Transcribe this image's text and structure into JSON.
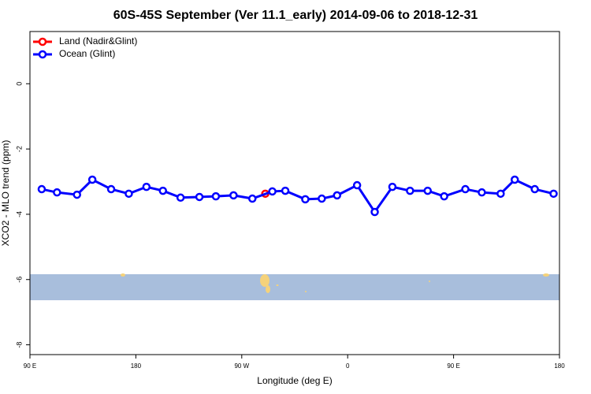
{
  "chart_data": {
    "type": "line",
    "title": "60S-45S September (Ver 11.1_early)   2014-09-06 to 2018-12-31",
    "xlabel": "Longitude (deg E)",
    "ylabel": "XCO2 - MLO trend (ppm)",
    "xlim": [
      90,
      540
    ],
    "xticks": [
      {
        "value": 90,
        "label": "90 E"
      },
      180,
      {
        "value": 270,
        "label": "90 W"
      },
      {
        "value": 360,
        "label": "0"
      },
      {
        "value": 450,
        "label": "90 E"
      },
      {
        "value": 540,
        "label": "180"
      }
    ],
    "ylim": [
      -8.3,
      1.6
    ],
    "yticks": [
      0,
      -2,
      -4,
      -6,
      -8
    ],
    "legend": "top-left",
    "series": [
      {
        "name": "Land (Nadir&Glint)",
        "color": "#ff0000",
        "x": [
          290
        ],
        "values": [
          -3.37
        ]
      },
      {
        "name": "Ocean (Glint)",
        "color": "#0000ff",
        "x": [
          100,
          113,
          130,
          143,
          159,
          174,
          189,
          203,
          218,
          234,
          248,
          263,
          279,
          296,
          307,
          324,
          338,
          351,
          368,
          383,
          398,
          413,
          428,
          442,
          460,
          474,
          490,
          502,
          519,
          535
        ],
        "values": [
          -3.23,
          -3.33,
          -3.4,
          -2.94,
          -3.23,
          -3.37,
          -3.16,
          -3.28,
          -3.49,
          -3.47,
          -3.45,
          -3.42,
          -3.52,
          -3.3,
          -3.28,
          -3.54,
          -3.52,
          -3.42,
          -3.11,
          -3.93,
          -3.16,
          -3.28,
          -3.28,
          -3.45,
          -3.23,
          -3.33,
          -3.37,
          -2.94,
          -3.23,
          -3.37
        ]
      }
    ]
  }
}
